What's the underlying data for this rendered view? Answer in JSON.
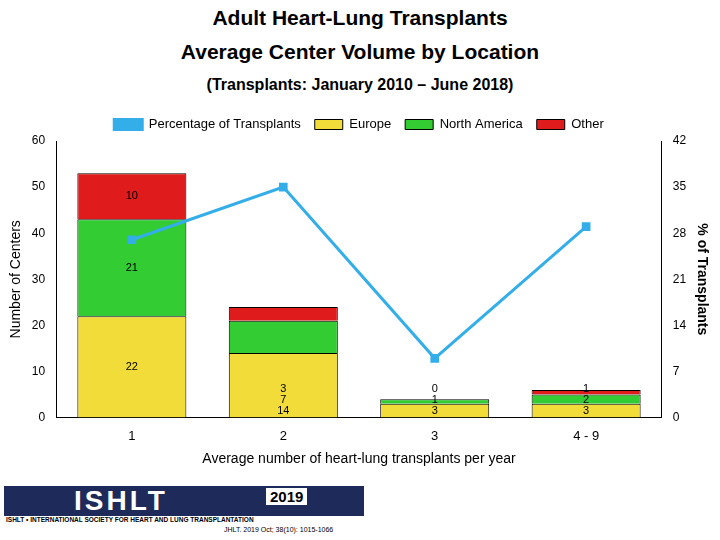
{
  "chart_data": {
    "type": "bar",
    "title": "Adult Heart-Lung Transplants",
    "subtitle": [
      "Average Center Volume by Location",
      "(Transplants: January 2010 – June 2018)"
    ],
    "x_label": "Average number of heart-lung transplants per year",
    "y_label": "Number of Centers",
    "y2_label": "% of Transplants",
    "categories": [
      "1",
      "2",
      "3",
      "4 - 9"
    ],
    "stacked": true,
    "grid": false,
    "legend": "top",
    "series": [
      {
        "name": "Europe",
        "color": "#f2dc3a",
        "values": [
          22,
          14,
          3,
          3
        ],
        "data_labels": true
      },
      {
        "name": "North America",
        "color": "#33cc33",
        "values": [
          21,
          7,
          1,
          2
        ],
        "data_labels": true
      },
      {
        "name": "Other",
        "color": "#e01b1b",
        "values": [
          10,
          3,
          0,
          1
        ],
        "data_labels": true
      },
      {
        "name": "Percentage of Transplants",
        "type": "line",
        "axis": "y2",
        "color": "#33aee8",
        "marker": "square",
        "line_style": "solid",
        "values": [
          27,
          35,
          9,
          29
        ]
      }
    ],
    "ylim": [
      0,
      60
    ],
    "yticks": [
      0,
      10,
      20,
      30,
      40,
      50,
      60
    ],
    "y2lim": [
      0,
      42
    ],
    "y2ticks": [
      0,
      7,
      14,
      21,
      28,
      35,
      42
    ],
    "annotations": [
      "ISHLT",
      "ISHLT • INTERNATIONAL SOCIETY FOR HEART AND LUNG TRANSPLANTATION",
      "2019",
      "JHLT. 2019 Oct; 38(10): 1015-1066"
    ]
  }
}
